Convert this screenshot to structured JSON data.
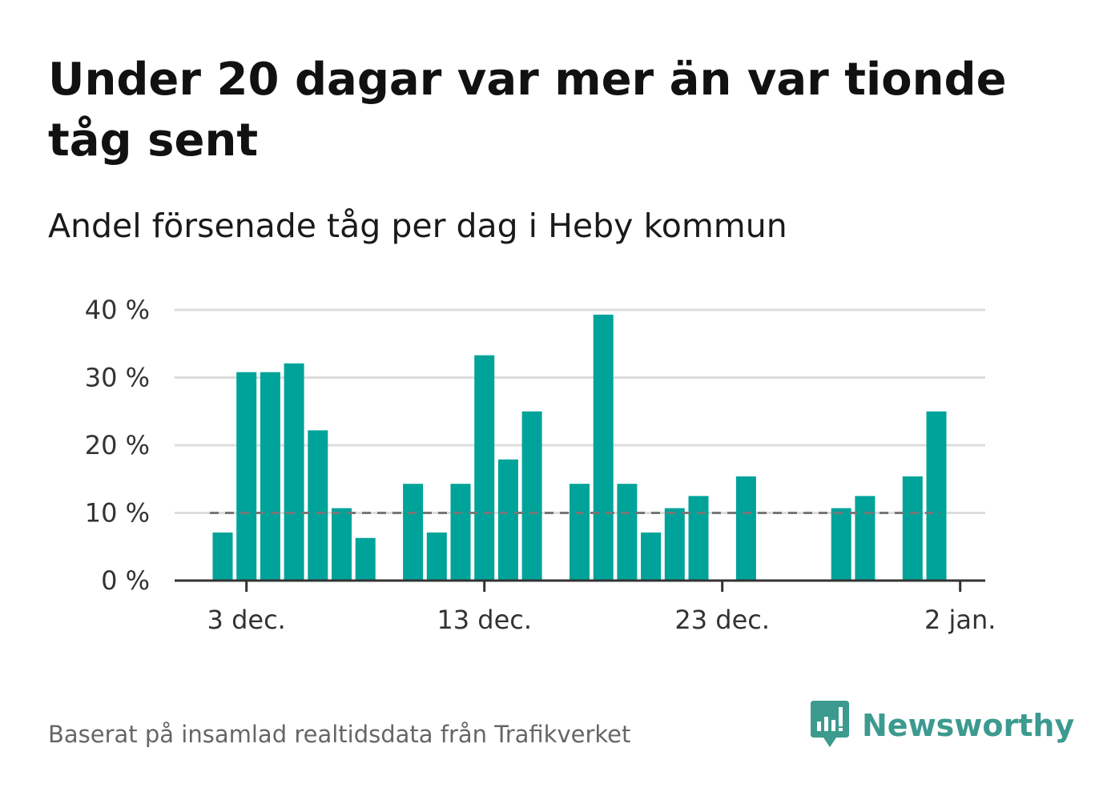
{
  "title": "Under 20 dagar var mer än var tionde tåg sent",
  "subtitle": "Andel försenade tåg per dag i Heby kommun",
  "source": "Baserat på insamlad realtidsdata från Trafikverket",
  "brand": {
    "name": "Newsworthy",
    "icon": "newsworthy-logo-icon",
    "color": "#3c9a8f"
  },
  "colors": {
    "bar": "#00a399",
    "reference_line": "#777777",
    "grid": "#dddddd",
    "axis": "#333333"
  },
  "chart_data": {
    "type": "bar",
    "unit": "%",
    "x": [
      "2020-12-02",
      "2020-12-03",
      "2020-12-04",
      "2020-12-05",
      "2020-12-06",
      "2020-12-07",
      "2020-12-08",
      "2020-12-09",
      "2020-12-10",
      "2020-12-11",
      "2020-12-12",
      "2020-12-13",
      "2020-12-14",
      "2020-12-15",
      "2020-12-16",
      "2020-12-17",
      "2020-12-18",
      "2020-12-19",
      "2020-12-20",
      "2020-12-21",
      "2020-12-22",
      "2020-12-23",
      "2020-12-24",
      "2020-12-25",
      "2020-12-26",
      "2020-12-27",
      "2020-12-28",
      "2020-12-29",
      "2020-12-30",
      "2020-12-31",
      "2021-01-01"
    ],
    "values": [
      7.1,
      30.8,
      30.8,
      32.1,
      22.2,
      10.7,
      6.3,
      null,
      14.3,
      7.1,
      14.3,
      33.3,
      17.9,
      25.0,
      null,
      14.3,
      39.3,
      14.3,
      7.1,
      10.7,
      12.5,
      null,
      15.4,
      null,
      null,
      null,
      10.7,
      12.5,
      null,
      15.4,
      25.0
    ],
    "reference_line": 10,
    "ylim": [
      0,
      40
    ],
    "yticks": [
      0,
      10,
      20,
      30,
      40
    ],
    "ytick_labels": [
      "0 %",
      "10 %",
      "20 %",
      "30 %",
      "40 %"
    ],
    "xticks": [
      "2020-12-03",
      "2020-12-13",
      "2020-12-23",
      "2021-01-02"
    ],
    "xtick_labels": [
      "3 dec.",
      "13 dec.",
      "23 dec.",
      "2 jan."
    ],
    "grid": true,
    "xlabel": "",
    "ylabel": ""
  }
}
